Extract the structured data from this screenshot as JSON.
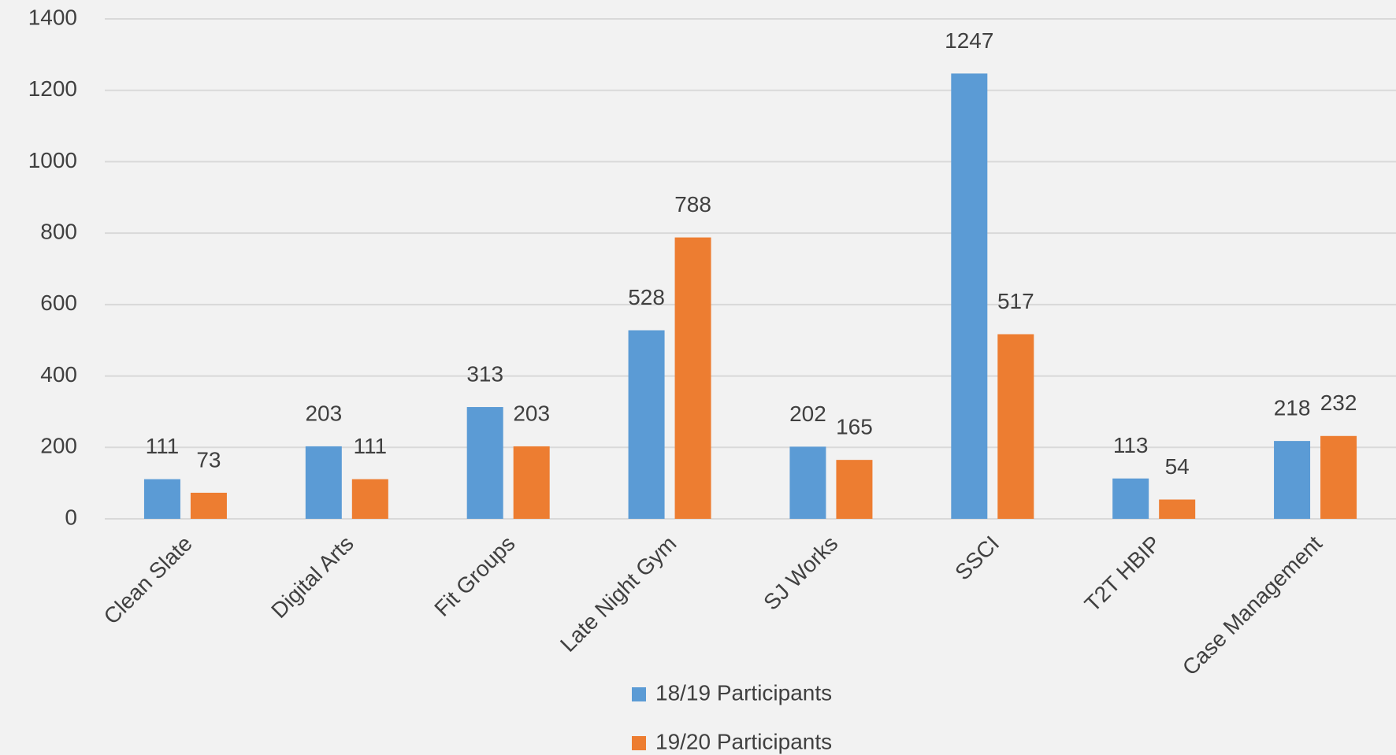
{
  "chart_data": {
    "type": "bar",
    "categories": [
      "Clean Slate",
      "Digital Arts",
      "Fit Groups",
      "Late Night Gym",
      "SJ Works",
      "SSCI",
      "T2T HBIP",
      "Case Management"
    ],
    "series": [
      {
        "name": "18/19 Participants",
        "color": "#5b9bd5",
        "values": [
          111,
          203,
          313,
          528,
          202,
          1247,
          113,
          218
        ]
      },
      {
        "name": "19/20 Participants",
        "color": "#ed7d31",
        "values": [
          73,
          111,
          203,
          788,
          165,
          517,
          54,
          232
        ]
      }
    ],
    "ylim": [
      0,
      1400
    ],
    "yticks": [
      0,
      200,
      400,
      600,
      800,
      1000,
      1200,
      1400
    ],
    "grid": true,
    "legend": "bottom"
  }
}
